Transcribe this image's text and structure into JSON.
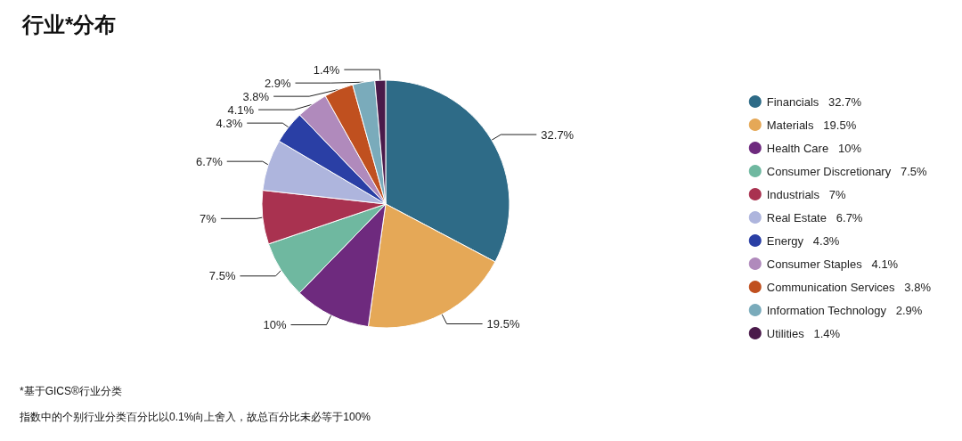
{
  "chart_data": {
    "type": "pie",
    "title": "行业*分布",
    "categories": [
      "Financials",
      "Materials",
      "Health Care",
      "Consumer Discretionary",
      "Industrials",
      "Real Estate",
      "Energy",
      "Consumer Staples",
      "Communication Services",
      "Information Technology",
      "Utilities"
    ],
    "values": [
      32.7,
      19.5,
      10,
      7.5,
      7,
      6.7,
      4.3,
      4.1,
      3.8,
      2.9,
      1.4
    ],
    "value_labels": [
      "32.7%",
      "19.5%",
      "10%",
      "7.5%",
      "7%",
      "6.7%",
      "4.3%",
      "4.1%",
      "3.8%",
      "2.9%",
      "1.4%"
    ],
    "colors": [
      "#2e6b87",
      "#e5a857",
      "#6e2a7e",
      "#6fb8a0",
      "#a93250",
      "#aeb5dd",
      "#2a3fa5",
      "#b08abc",
      "#c0501f",
      "#7aabbb",
      "#4a1a4a"
    ],
    "legend": "right",
    "annotations": [
      "*基于GICS®行业分类",
      "指数中的个别行业分类百分比以0.1%向上舍入，故总百分比未必等于100%"
    ]
  }
}
